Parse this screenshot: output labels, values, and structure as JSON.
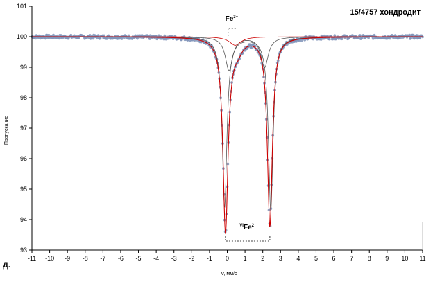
{
  "chart_data": {
    "type": "scatter",
    "title": "15/4757 хондродит",
    "xlabel": "V, мм/с",
    "ylabel": "Пропускание",
    "xlim": [
      -11,
      11
    ],
    "ylim": [
      93,
      101
    ],
    "xticks": [
      -11,
      -10,
      -9,
      -8,
      -7,
      -6,
      -5,
      -4,
      -3,
      -2,
      -1,
      0,
      1,
      2,
      3,
      4,
      5,
      6,
      7,
      8,
      9,
      10,
      11
    ],
    "yticks": [
      93,
      94,
      95,
      96,
      97,
      98,
      99,
      100,
      101
    ],
    "baseline": 100.0,
    "grid": false,
    "panel_label": "Д.",
    "annotations": {
      "fe3": {
        "main": "Fe",
        "sup": "3+"
      },
      "fe2": {
        "pre": "VI",
        "main": "Fe",
        "sup": "2"
      }
    },
    "series": [
      {
        "kind": "experimental",
        "marker_color": "#7f93b8",
        "noise_amplitude": 0.06
      },
      {
        "kind": "fit-envelope",
        "color": "#cc0000",
        "peaks": [
          {
            "pos": -0.1,
            "depth": 6.1,
            "hwhm": 0.17
          },
          {
            "pos": 2.4,
            "depth": 6.2,
            "hwhm": 0.17
          },
          {
            "pos": 0.05,
            "depth": 0.35,
            "hwhm": 0.35
          },
          {
            "pos": 0.6,
            "depth": 0.3,
            "hwhm": 0.3
          }
        ]
      },
      {
        "kind": "component",
        "color": "#555555",
        "peaks": [
          {
            "pos": -0.15,
            "depth": 5.6,
            "hwhm": 0.16
          },
          {
            "pos": 2.45,
            "depth": 5.7,
            "hwhm": 0.16
          }
        ]
      },
      {
        "kind": "component",
        "color": "#555555",
        "peaks": [
          {
            "pos": 0.1,
            "depth": 1.1,
            "hwhm": 0.25
          },
          {
            "pos": 2.1,
            "depth": 1.0,
            "hwhm": 0.25
          }
        ]
      },
      {
        "kind": "component",
        "color": "#cc0000",
        "peaks": [
          {
            "pos": 0.45,
            "depth": 0.28,
            "hwhm": 0.4
          }
        ]
      }
    ]
  }
}
